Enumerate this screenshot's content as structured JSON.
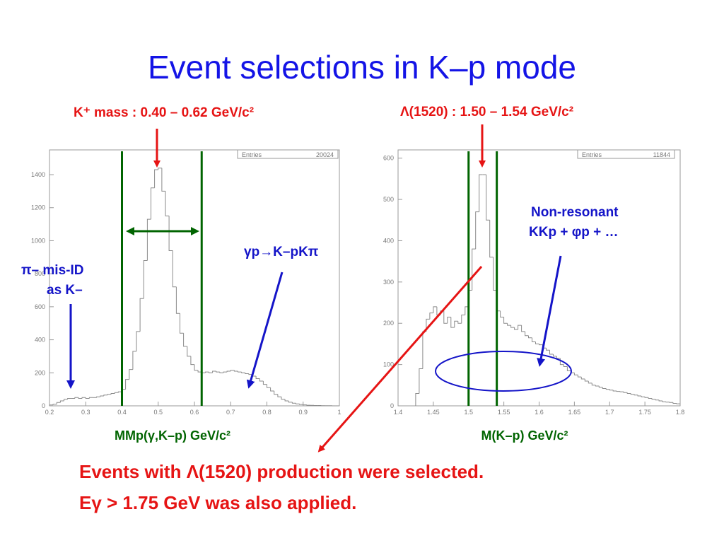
{
  "slide": {
    "title": "Event selections in K–p mode",
    "left_cut": "K⁺ mass : 0.40 – 0.62 GeV/c²",
    "right_cut": "Λ(1520) : 1.50 – 1.54 GeV/c²",
    "ann_misid_1": "π– mis-ID",
    "ann_misid_2": "as K–",
    "ann_gp": "γp→K–pKπ",
    "ann_nonres_1": "Non-resonant",
    "ann_nonres_2": "KKp + φp + …",
    "footer_1": "Events with Λ(1520) production were selected.",
    "footer_2": "Eγ > 1.75 GeV was also applied."
  },
  "colors": {
    "title": "#1414e6",
    "red": "#e61414",
    "blue": "#1414c8",
    "green": "#006400",
    "hist": "#8a8a8a"
  },
  "chart_data": [
    {
      "type": "bar",
      "xlabel": "MMp(γ,K–p) GeV/c²",
      "ylabel": "",
      "entries_label": "Entries",
      "entries": "20024",
      "xlim": [
        0.2,
        1.0
      ],
      "ylim": [
        0,
        1550
      ],
      "xticks": [
        "0.2",
        "0.3",
        "0.4",
        "0.5",
        "0.6",
        "0.7",
        "0.8",
        "0.9",
        "1"
      ],
      "yticks": [
        "0",
        "200",
        "400",
        "600",
        "800",
        "1000",
        "1200",
        "1400"
      ],
      "cut_lines": [
        0.4,
        0.62
      ],
      "bin_width": 0.01,
      "x": [
        0.2,
        0.21,
        0.22,
        0.23,
        0.24,
        0.25,
        0.26,
        0.27,
        0.28,
        0.29,
        0.3,
        0.31,
        0.32,
        0.33,
        0.34,
        0.35,
        0.36,
        0.37,
        0.38,
        0.39,
        0.4,
        0.41,
        0.42,
        0.43,
        0.44,
        0.45,
        0.46,
        0.47,
        0.48,
        0.49,
        0.5,
        0.51,
        0.52,
        0.53,
        0.54,
        0.55,
        0.56,
        0.57,
        0.58,
        0.59,
        0.6,
        0.61,
        0.62,
        0.63,
        0.64,
        0.65,
        0.66,
        0.67,
        0.68,
        0.69,
        0.7,
        0.71,
        0.72,
        0.73,
        0.74,
        0.75,
        0.76,
        0.77,
        0.78,
        0.79,
        0.8,
        0.81,
        0.82,
        0.83,
        0.84,
        0.85,
        0.86,
        0.87,
        0.88,
        0.89,
        0.9,
        0.91,
        0.92,
        0.93,
        0.94,
        0.95,
        0.96,
        0.97,
        0.98,
        0.99
      ],
      "values": [
        5,
        10,
        20,
        30,
        40,
        45,
        45,
        50,
        45,
        50,
        45,
        50,
        50,
        55,
        60,
        65,
        70,
        75,
        80,
        85,
        100,
        160,
        220,
        330,
        450,
        650,
        880,
        1130,
        1320,
        1430,
        1440,
        1300,
        1150,
        940,
        720,
        560,
        440,
        360,
        300,
        250,
        215,
        205,
        200,
        205,
        200,
        210,
        205,
        200,
        205,
        210,
        215,
        210,
        205,
        200,
        195,
        190,
        180,
        165,
        150,
        130,
        110,
        90,
        70,
        55,
        40,
        30,
        22,
        16,
        12,
        8,
        6,
        4,
        3,
        2,
        2,
        1,
        1,
        1,
        0,
        0
      ]
    },
    {
      "type": "bar",
      "xlabel": "M(K–p) GeV/c²",
      "ylabel": "",
      "entries_label": "Entries",
      "entries": "11844",
      "xlim": [
        1.4,
        1.8
      ],
      "ylim": [
        0,
        620
      ],
      "xticks": [
        "1.4",
        "1.45",
        "1.5",
        "1.55",
        "1.6",
        "1.65",
        "1.7",
        "1.75",
        "1.8"
      ],
      "yticks": [
        "0",
        "100",
        "200",
        "300",
        "400",
        "500",
        "600"
      ],
      "cut_lines": [
        1.5,
        1.54
      ],
      "bin_width": 0.005,
      "x": [
        1.425,
        1.43,
        1.435,
        1.44,
        1.445,
        1.45,
        1.455,
        1.46,
        1.465,
        1.47,
        1.475,
        1.48,
        1.485,
        1.49,
        1.495,
        1.5,
        1.505,
        1.51,
        1.515,
        1.52,
        1.525,
        1.53,
        1.535,
        1.54,
        1.545,
        1.55,
        1.555,
        1.56,
        1.565,
        1.57,
        1.575,
        1.58,
        1.585,
        1.59,
        1.595,
        1.6,
        1.605,
        1.61,
        1.615,
        1.62,
        1.625,
        1.63,
        1.635,
        1.64,
        1.645,
        1.65,
        1.655,
        1.66,
        1.665,
        1.67,
        1.675,
        1.68,
        1.685,
        1.69,
        1.695,
        1.7,
        1.705,
        1.71,
        1.715,
        1.72,
        1.725,
        1.73,
        1.735,
        1.74,
        1.745,
        1.75,
        1.755,
        1.76,
        1.765,
        1.77,
        1.775,
        1.78,
        1.785,
        1.79,
        1.795
      ],
      "values": [
        30,
        90,
        180,
        210,
        225,
        240,
        220,
        230,
        200,
        215,
        190,
        205,
        200,
        220,
        240,
        280,
        380,
        470,
        560,
        560,
        450,
        360,
        280,
        230,
        215,
        200,
        195,
        190,
        185,
        195,
        180,
        170,
        165,
        155,
        150,
        148,
        140,
        135,
        125,
        120,
        115,
        100,
        95,
        85,
        80,
        75,
        70,
        65,
        60,
        55,
        50,
        48,
        45,
        42,
        40,
        38,
        36,
        35,
        34,
        32,
        30,
        28,
        26,
        24,
        22,
        20,
        18,
        16,
        14,
        12,
        10,
        9,
        8,
        6,
        5
      ]
    }
  ]
}
